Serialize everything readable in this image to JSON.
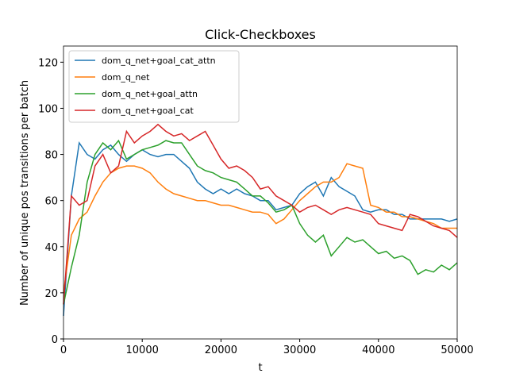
{
  "chart_data": {
    "type": "line",
    "title": "Click-Checkboxes",
    "xlabel": "t",
    "ylabel": "Number of unique pos transitions per batch",
    "x": [
      0,
      1000,
      2000,
      3000,
      4000,
      5000,
      6000,
      7000,
      8000,
      9000,
      10000,
      11000,
      12000,
      13000,
      14000,
      15000,
      16000,
      17000,
      18000,
      19000,
      20000,
      21000,
      22000,
      23000,
      24000,
      25000,
      26000,
      27000,
      28000,
      29000,
      30000,
      31000,
      32000,
      33000,
      34000,
      35000,
      36000,
      37000,
      38000,
      39000,
      40000,
      41000,
      42000,
      43000,
      44000,
      45000,
      46000,
      47000,
      48000,
      49000,
      50000
    ],
    "series": [
      {
        "name": "dom_q_net+goal_cat_attn",
        "color": "#1f77b4",
        "values": [
          10,
          62,
          85,
          80,
          78,
          82,
          84,
          80,
          77,
          80,
          82,
          80,
          79,
          80,
          80,
          77,
          74,
          68,
          65,
          63,
          65,
          63,
          65,
          63,
          62,
          60,
          60,
          56,
          57,
          58,
          63,
          66,
          68,
          62,
          70,
          66,
          64,
          62,
          56,
          55,
          56,
          56,
          54,
          54,
          52,
          52,
          52,
          52,
          52,
          51,
          52
        ]
      },
      {
        "name": "dom_q_net",
        "color": "#ff7f0e",
        "values": [
          20,
          45,
          52,
          55,
          62,
          68,
          72,
          74,
          75,
          75,
          74,
          72,
          68,
          65,
          63,
          62,
          61,
          60,
          60,
          59,
          58,
          58,
          57,
          56,
          55,
          55,
          54,
          50,
          52,
          56,
          60,
          63,
          66,
          68,
          68,
          70,
          76,
          75,
          74,
          58,
          57,
          55,
          55,
          53,
          53,
          52,
          51,
          50,
          48,
          48,
          48
        ]
      },
      {
        "name": "dom_q_net+goal_attn",
        "color": "#2ca02c",
        "values": [
          15,
          31,
          45,
          68,
          80,
          85,
          82,
          86,
          78,
          80,
          82,
          83,
          84,
          86,
          85,
          85,
          80,
          75,
          73,
          72,
          70,
          69,
          68,
          65,
          62,
          62,
          59,
          55,
          56,
          58,
          50,
          45,
          42,
          45,
          36,
          40,
          44,
          42,
          43,
          40,
          37,
          38,
          35,
          36,
          34,
          28,
          30,
          29,
          32,
          30,
          33
        ]
      },
      {
        "name": "dom_q_net+goal_cat",
        "color": "#d62728",
        "values": [
          15,
          62,
          58,
          60,
          75,
          80,
          72,
          75,
          90,
          85,
          88,
          90,
          93,
          90,
          88,
          89,
          86,
          88,
          90,
          84,
          78,
          74,
          75,
          73,
          70,
          65,
          66,
          62,
          60,
          58,
          55,
          57,
          58,
          56,
          54,
          56,
          57,
          56,
          55,
          54,
          50,
          49,
          48,
          47,
          54,
          53,
          51,
          49,
          48,
          47,
          44
        ]
      }
    ],
    "xlim": [
      0,
      50000
    ],
    "ylim": [
      0,
      127
    ],
    "xticks": [
      0,
      10000,
      20000,
      30000,
      40000,
      50000
    ],
    "yticks": [
      0,
      20,
      40,
      60,
      80,
      100,
      120
    ],
    "legend": "upper left"
  }
}
